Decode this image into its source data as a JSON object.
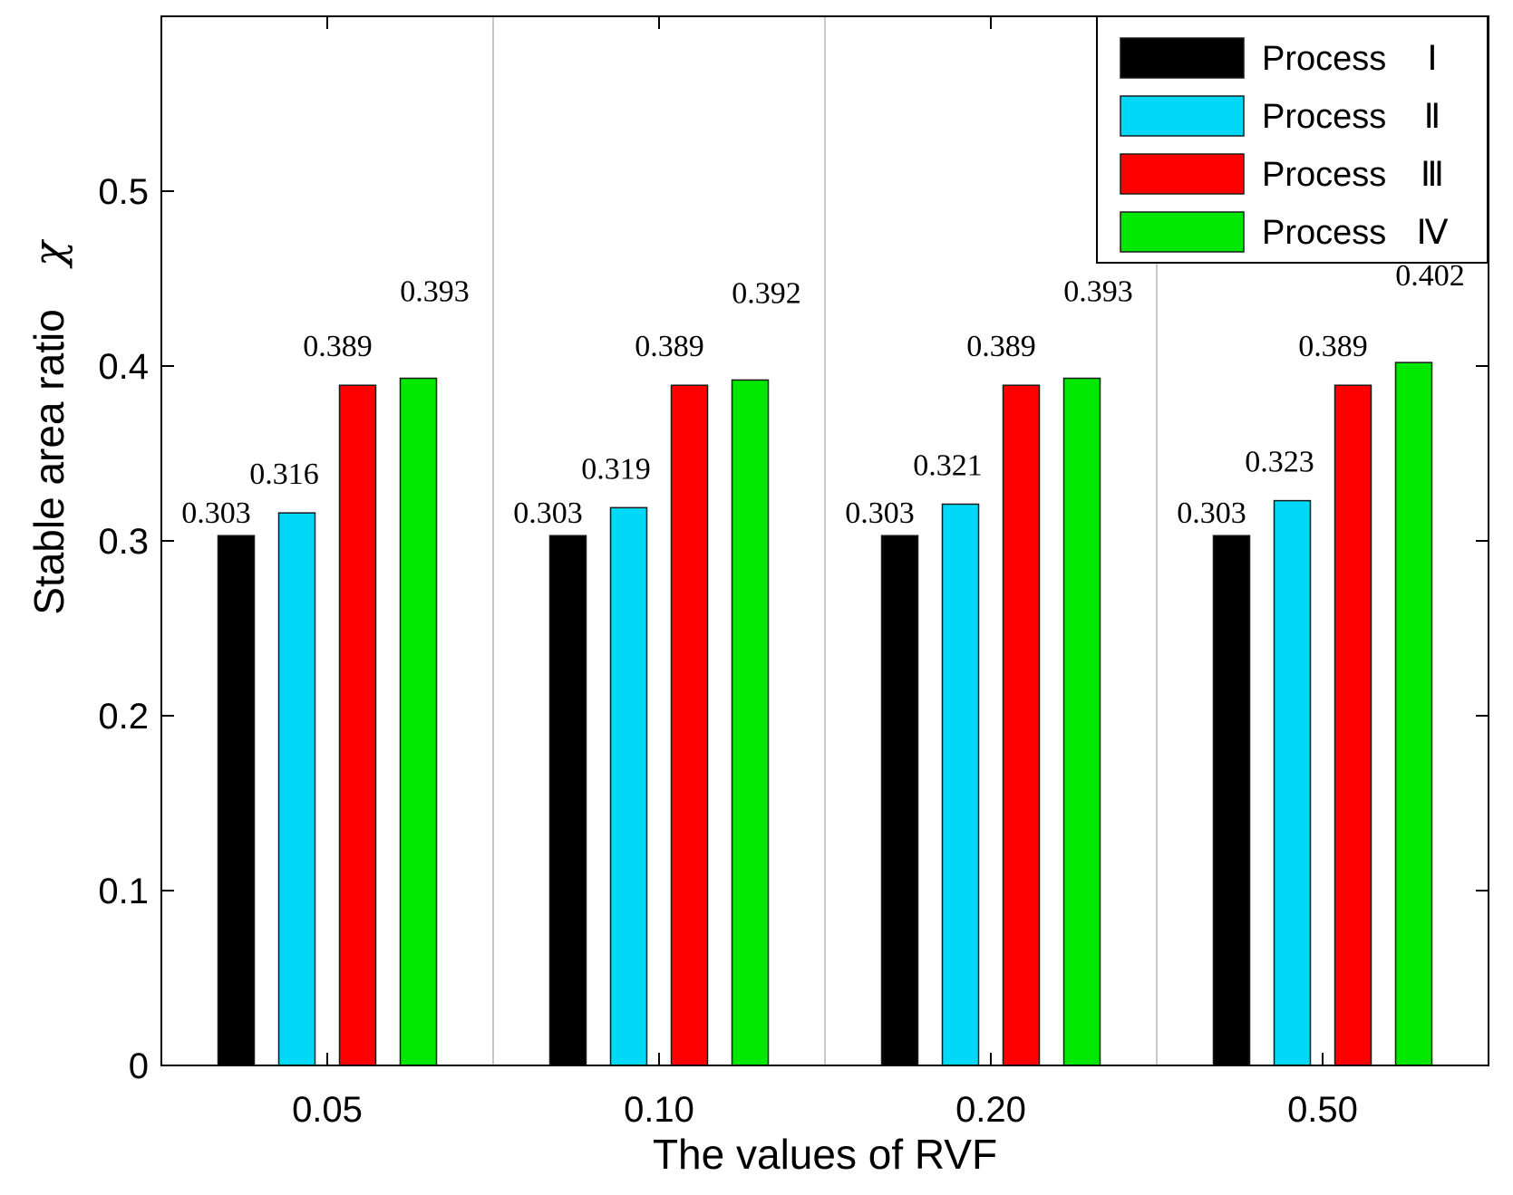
{
  "chart_data": {
    "type": "bar",
    "xlabel": "The values of RVF",
    "ylabel": "Stable area ratio",
    "ylabel_symbol": "χ",
    "categories": [
      "0.05",
      "0.10",
      "0.20",
      "0.50"
    ],
    "ylim": [
      0,
      0.6
    ],
    "yticks": [
      "0",
      "0.1",
      "0.2",
      "0.3",
      "0.4",
      "0.5"
    ],
    "ytick_values": [
      0,
      0.1,
      0.2,
      0.3,
      0.4,
      0.5
    ],
    "legend_position": "top-right",
    "grid": "vertical separators between groups",
    "series": [
      {
        "name": "Process",
        "roman": "Ⅰ",
        "color": "#000000",
        "values": [
          0.303,
          0.303,
          0.303,
          0.303
        ],
        "labels": [
          "0.303",
          "0.303",
          "0.303",
          "0.303"
        ]
      },
      {
        "name": "Process",
        "roman": "Ⅱ",
        "color": "#00d8f8",
        "values": [
          0.316,
          0.319,
          0.321,
          0.323
        ],
        "labels": [
          "0.316",
          "0.319",
          "0.321",
          "0.323"
        ]
      },
      {
        "name": "Process",
        "roman": "Ⅲ",
        "color": "#ff0000",
        "values": [
          0.389,
          0.389,
          0.389,
          0.389
        ],
        "labels": [
          "0.389",
          "0.389",
          "0.389",
          "0.389"
        ]
      },
      {
        "name": "Process",
        "roman": "Ⅳ",
        "color": "#00e800",
        "values": [
          0.393,
          0.392,
          0.393,
          0.402
        ],
        "labels": [
          "0.393",
          "0.392",
          "0.393",
          "0.402"
        ]
      }
    ]
  }
}
